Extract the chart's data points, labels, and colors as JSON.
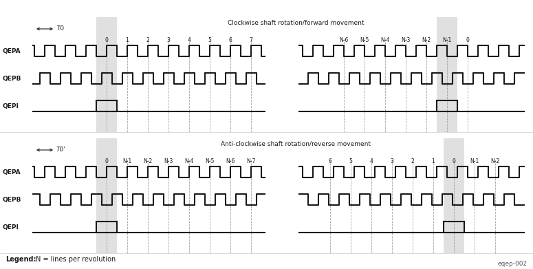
{
  "title_top": "Clockwise shaft rotation/forward movement",
  "title_bottom": "Anti-clockwise shaft rotation/reverse movement",
  "legend_bold": "Legend:",
  "legend_normal": " N = lines per revolution",
  "watermark": "eqep-002",
  "bg_color": "#ffffff",
  "line_color": "#1a1a1a",
  "grid_color": "#999999",
  "shade_color": "#cccccc",
  "fig_width": 7.75,
  "fig_height": 3.91,
  "dpi": 100
}
